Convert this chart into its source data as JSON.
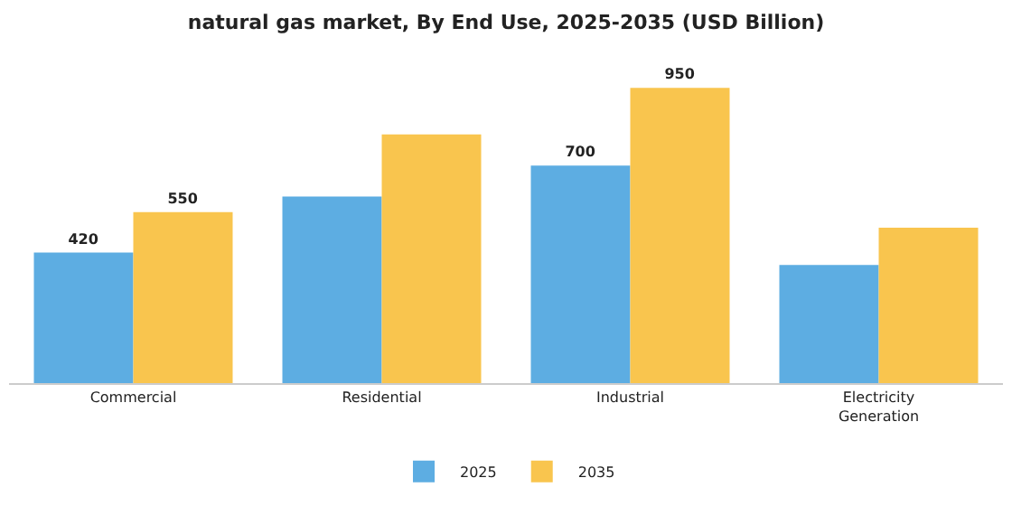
{
  "chart_data": {
    "type": "bar",
    "title": "natural gas market, By End Use, 2025-2035 (USD Billion)",
    "categories": [
      "Commercial",
      "Residential",
      "Industrial",
      "Electricity Generation"
    ],
    "series": [
      {
        "name": "2025",
        "color": "#5dade2",
        "values": [
          420,
          600,
          700,
          380
        ],
        "value_labels": [
          "420",
          null,
          "700",
          null
        ]
      },
      {
        "name": "2035",
        "color": "#f9c54e",
        "values": [
          550,
          800,
          950,
          500
        ],
        "value_labels": [
          "550",
          null,
          "950",
          null
        ]
      }
    ],
    "legend": "bottom",
    "grid": false
  }
}
